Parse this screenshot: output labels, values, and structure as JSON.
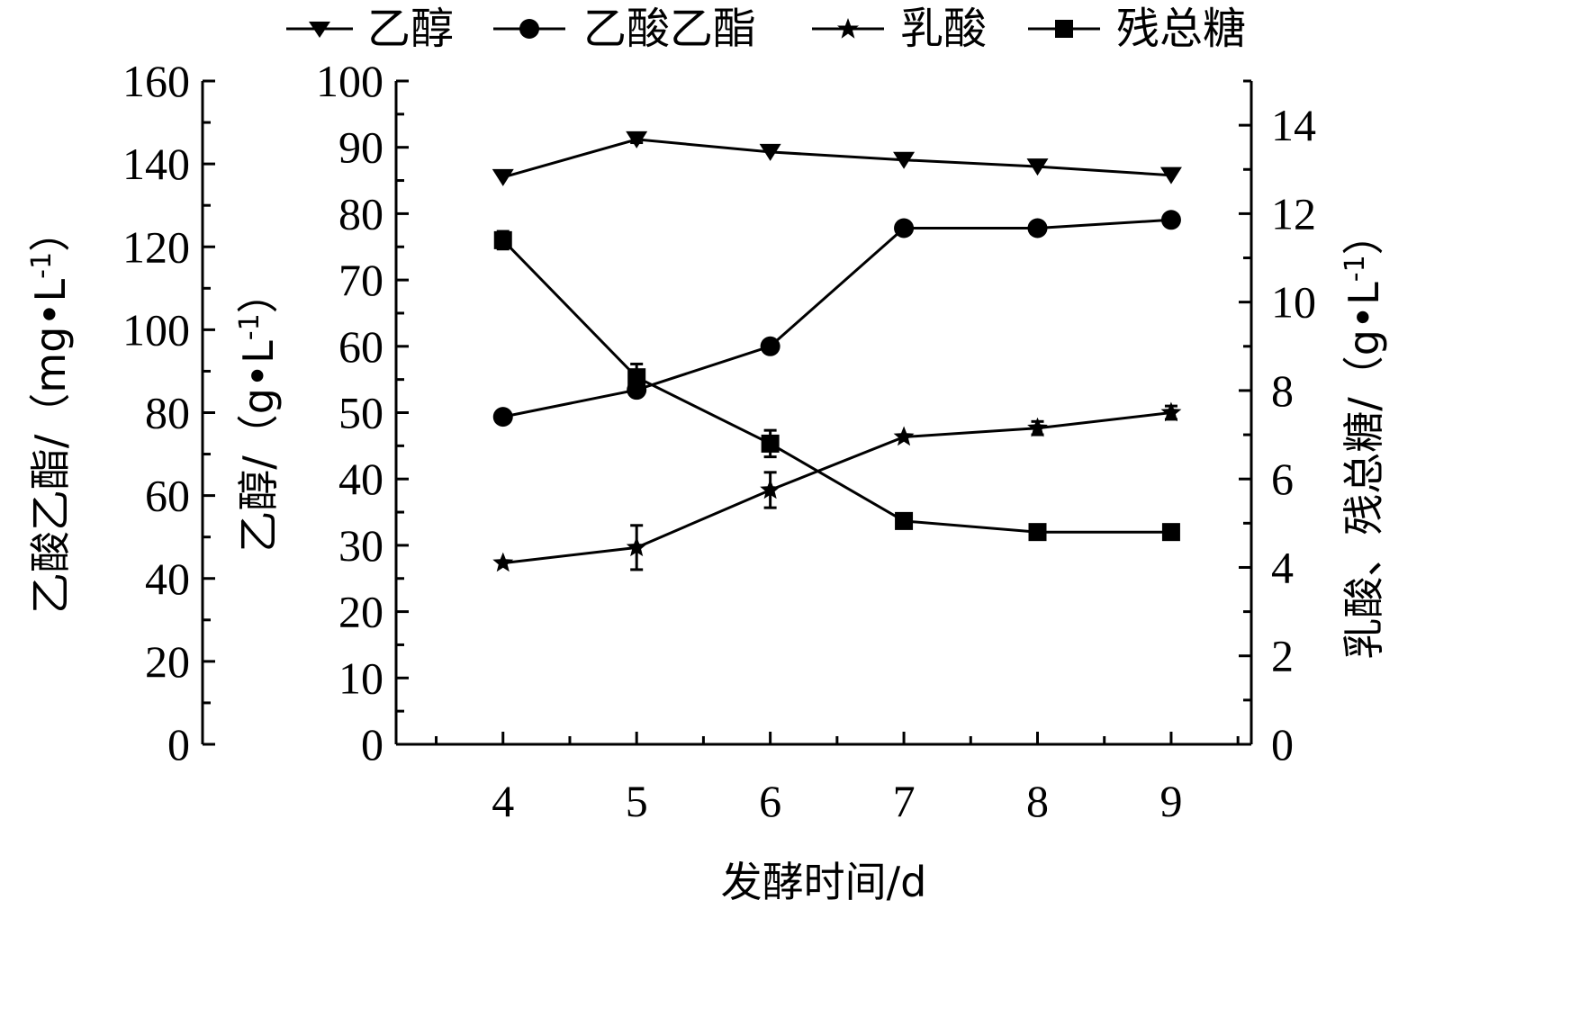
{
  "chart_data": {
    "type": "line",
    "xlabel": "发酵时间/d",
    "x": [
      4,
      5,
      6,
      7,
      8,
      9
    ],
    "x_ticks": [
      "4",
      "5",
      "6",
      "7",
      "8",
      "9"
    ],
    "axes": {
      "left_outer": {
        "title": "乙酸乙酯/（mg•L",
        "title_sup": "-1",
        "title_end": "）",
        "ylim": [
          0,
          160
        ],
        "ticks": [
          "0",
          "20",
          "40",
          "60",
          "80",
          "100",
          "120",
          "140",
          "160"
        ]
      },
      "left_inner": {
        "title": "乙醇/（g•L",
        "title_sup": "-1",
        "title_end": "）",
        "ylim": [
          0,
          100
        ],
        "ticks": [
          "0",
          "10",
          "20",
          "30",
          "40",
          "50",
          "60",
          "70",
          "80",
          "90",
          "100"
        ]
      },
      "right": {
        "title": "乳酸、残总糖/（g•L",
        "title_sup": "-1",
        "title_end": "）",
        "ylim": [
          0,
          15
        ],
        "ticks": [
          "0",
          "2",
          "4",
          "6",
          "8",
          "10",
          "12",
          "14"
        ]
      }
    },
    "series": [
      {
        "name": "乙醇",
        "axis": "left_inner",
        "marker": "triangle-down",
        "values": [
          85.5,
          91.2,
          89.3,
          88.1,
          87.1,
          85.8
        ],
        "errors": [
          0,
          0.5,
          0,
          0,
          0,
          0
        ]
      },
      {
        "name": "乙酸乙酯",
        "axis": "left_outer",
        "marker": "circle",
        "values": [
          79,
          85.5,
          96,
          124.5,
          124.5,
          126.5
        ],
        "errors": [
          0,
          0,
          0,
          0,
          0,
          0
        ]
      },
      {
        "name": "乳酸",
        "axis": "right",
        "marker": "star",
        "values": [
          4.1,
          4.45,
          5.75,
          6.95,
          7.15,
          7.5
        ],
        "errors": [
          0,
          0.5,
          0.4,
          0,
          0.15,
          0.15
        ]
      },
      {
        "name": "残总糖",
        "axis": "right",
        "marker": "square",
        "values": [
          11.4,
          8.3,
          6.8,
          5.05,
          4.8,
          4.8
        ],
        "errors": [
          0.2,
          0.3,
          0.3,
          0,
          0,
          0
        ]
      }
    ],
    "legend_position": "top",
    "grid": false
  }
}
